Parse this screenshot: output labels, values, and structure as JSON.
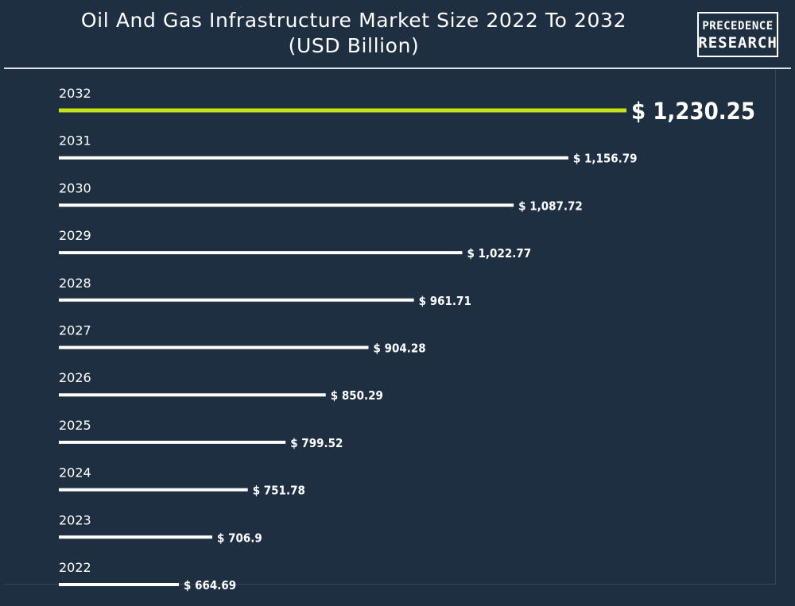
{
  "header": {
    "title_line1": "Oil And Gas Infrastructure Market Size 2022 To 2032",
    "title_line2": "(USD Billion)"
  },
  "logo": {
    "line1": "PRECEDENCE",
    "line2": "RESEARCH"
  },
  "colors": {
    "background": "#1e2f42",
    "bar": "#ffffff",
    "highlight_bar": "#c6e21b",
    "text": "#ffffff"
  },
  "chart_data": {
    "type": "bar",
    "orientation": "horizontal",
    "title": "Oil And Gas Infrastructure Market Size 2022 To 2032 (USD Billion)",
    "categories": [
      "2032",
      "2031",
      "2030",
      "2029",
      "2028",
      "2027",
      "2026",
      "2025",
      "2024",
      "2023",
      "2022"
    ],
    "values": [
      1230.25,
      1156.79,
      1087.72,
      1022.77,
      961.71,
      904.28,
      850.29,
      799.52,
      751.78,
      706.9,
      664.69
    ],
    "value_labels": [
      "$ 1,230.25",
      "$ 1,156.79",
      "$ 1,087.72",
      "$ 1,022.77",
      "$ 961.71",
      "$ 904.28",
      "$ 850.29",
      "$ 799.52",
      "$ 751.78",
      "$ 706.9",
      "$ 664.69"
    ],
    "highlight_category": "2032",
    "grid": false,
    "legend": "none"
  }
}
